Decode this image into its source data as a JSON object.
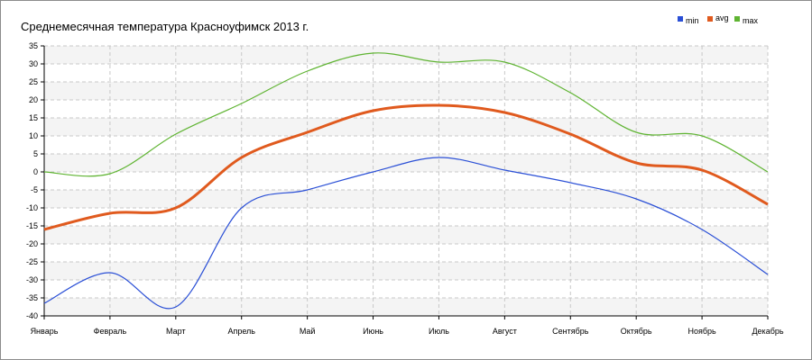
{
  "chart_data": {
    "type": "line",
    "title": "Среднемесячная температура Красноуфимск  2013 г.",
    "categories": [
      "Январь",
      "Февраль",
      "Март",
      "Апрель",
      "Май",
      "Июнь",
      "Июль",
      "Август",
      "Сентябрь",
      "Октябрь",
      "Ноябрь",
      "Декабрь"
    ],
    "ylim": [
      -40,
      35
    ],
    "y_ticks": [
      35,
      30,
      25,
      20,
      15,
      10,
      5,
      0,
      -5,
      -10,
      -15,
      -20,
      -25,
      -30,
      -35,
      -40
    ],
    "grid": true,
    "legend_position": "top-right",
    "series": [
      {
        "name": "min",
        "color": "#2a4fd6",
        "values": [
          -36.5,
          -28,
          -37.5,
          -10,
          -5,
          0,
          4,
          0.5,
          -3,
          -7.5,
          -16,
          -28.5
        ]
      },
      {
        "name": "avg",
        "color": "#e05a1e",
        "values": [
          -16,
          -11.5,
          -10,
          4,
          11,
          17,
          18.5,
          16.5,
          10.5,
          2.5,
          0.5,
          -9
        ]
      },
      {
        "name": "max",
        "color": "#5fb432",
        "values": [
          0,
          -0.5,
          10.5,
          19,
          28,
          33,
          30.5,
          30.5,
          22,
          11,
          10,
          0
        ]
      }
    ]
  }
}
